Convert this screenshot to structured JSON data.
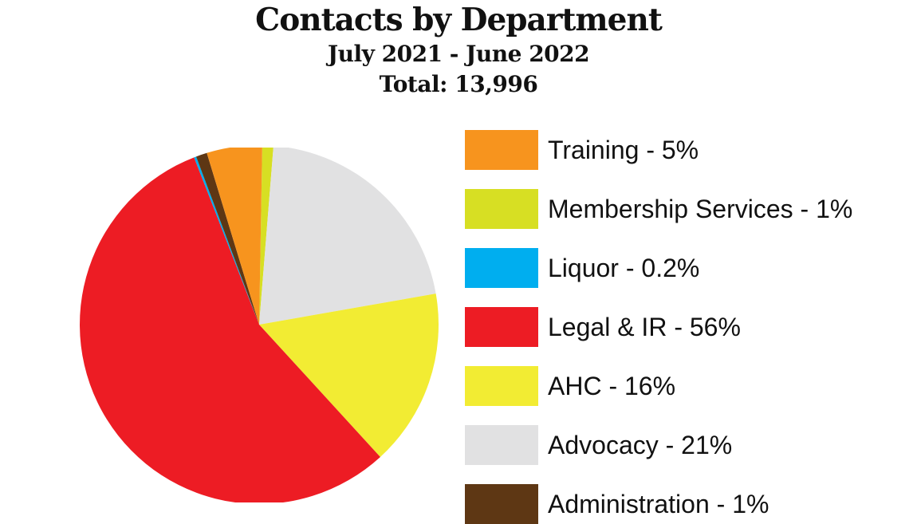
{
  "header": {
    "title": "Contacts by Department",
    "subtitle": "July 2021 - June 2022",
    "total": "Total: 13,996"
  },
  "chart_data": {
    "type": "pie",
    "title": "Contacts by Department",
    "subtitle": "July 2021 - June 2022",
    "total_label": "Total: 13,996",
    "legend_position": "right",
    "slices": [
      {
        "name": "Training",
        "label": "Training - 5%",
        "value": 5,
        "color": "#F7941E"
      },
      {
        "name": "Membership Services",
        "label": "Membership Services - 1%",
        "value": 1,
        "color": "#D7DF23"
      },
      {
        "name": "Liquor",
        "label": "Liquor - 0.2%",
        "value": 0.2,
        "color": "#00AEEF"
      },
      {
        "name": "Legal & IR",
        "label": "Legal & IR - 56%",
        "value": 56,
        "color": "#ED1C24"
      },
      {
        "name": "AHC",
        "label": "AHC - 16%",
        "value": 16,
        "color": "#F2EC33"
      },
      {
        "name": "Advocacy",
        "label": "Advocacy - 21%",
        "value": 21,
        "color": "#E1E1E2"
      },
      {
        "name": "Administration",
        "label": "Administration - 1%",
        "value": 1,
        "color": "#5E3714"
      }
    ],
    "pie_order": [
      "Membership Services",
      "Advocacy",
      "AHC",
      "Legal & IR",
      "Liquor",
      "Administration",
      "Training"
    ]
  }
}
